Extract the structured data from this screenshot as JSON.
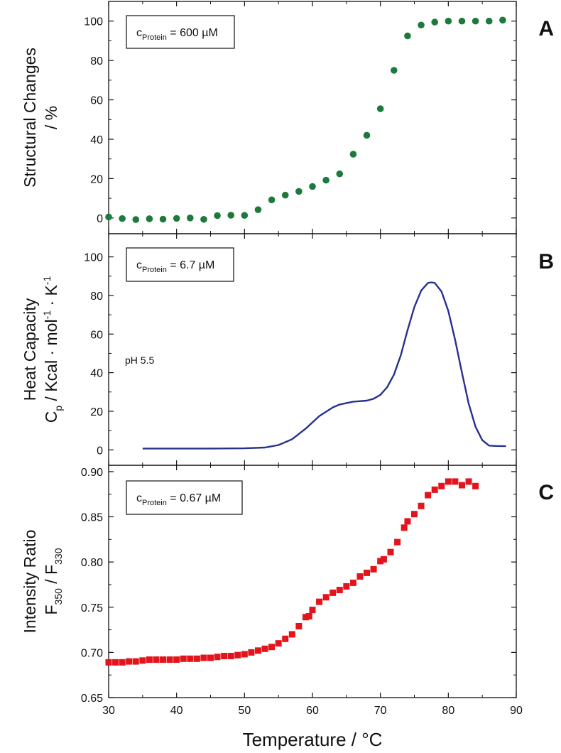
{
  "chart_data": [
    {
      "panel": "A",
      "type": "scatter",
      "ylabel_lines": [
        "Structural Changes",
        "/ %"
      ],
      "legend": {
        "prefix": "c",
        "sub": "Protein",
        "suffix": " = 600 µM"
      },
      "ylim": [
        -8,
        110
      ],
      "yticks": [
        0,
        20,
        40,
        60,
        80,
        100
      ],
      "marker": "circle",
      "color": "#1e7a3c",
      "series": [
        {
          "x": [
            30,
            32,
            34,
            36,
            38,
            40,
            42,
            44,
            46,
            48,
            50,
            52,
            54,
            56,
            58,
            60,
            62,
            64,
            66,
            68,
            70,
            72,
            74,
            76,
            78,
            80,
            82,
            84,
            86,
            88
          ],
          "y": [
            0.5,
            -0.3,
            -0.8,
            -0.4,
            -0.6,
            -0.2,
            0,
            -0.7,
            1.2,
            1.4,
            1.3,
            4.2,
            9.2,
            11.6,
            13.5,
            16.0,
            19.2,
            22.4,
            32.4,
            42.0,
            55.5,
            75.0,
            92.5,
            98.0,
            99.5,
            100.0,
            100.0,
            100.0,
            100.0,
            100.5
          ]
        }
      ]
    },
    {
      "panel": "B",
      "type": "line",
      "ylabel_lines": [
        "Heat Capacity",
        "C|p|  /  Kcal · mol|-1| · K|-1|"
      ],
      "legend": {
        "prefix": "c",
        "sub": "Protein",
        "suffix": " = 6.7 µM"
      },
      "annotation": "pH 5.5",
      "ylim": [
        -8,
        112
      ],
      "yticks": [
        0,
        20,
        40,
        60,
        80,
        100
      ],
      "color": "#27318e",
      "series": [
        {
          "x": [
            35,
            40,
            45,
            50,
            53,
            55,
            57,
            59,
            61,
            63,
            64,
            66,
            68,
            69,
            70,
            71,
            72,
            73,
            74,
            75,
            76,
            77,
            77.5,
            78,
            79,
            80,
            81,
            82,
            83,
            84,
            85,
            86,
            87,
            88.5
          ],
          "y": [
            0.7,
            0.7,
            0.7,
            0.8,
            1.2,
            2.5,
            5.5,
            11.0,
            17.5,
            22.0,
            23.5,
            25.0,
            25.5,
            26.5,
            28.5,
            32.5,
            39.0,
            49.0,
            62.0,
            74.0,
            82.5,
            86.5,
            86.8,
            86.5,
            82.0,
            72.0,
            57.0,
            40.0,
            24.0,
            12.0,
            5.0,
            2.2,
            2.0,
            1.9
          ]
        }
      ]
    },
    {
      "panel": "C",
      "type": "scatter",
      "ylabel_lines": [
        "Intensity Ratio",
        "F|350| / F|330|"
      ],
      "legend": {
        "prefix": "c",
        "sub": "Protein",
        "suffix": " = 0.67 µM"
      },
      "ylim": [
        0.65,
        0.907
      ],
      "yticks": [
        0.65,
        0.7,
        0.75,
        0.8,
        0.85,
        0.9
      ],
      "ytick_labels": [
        "0.65",
        "0.70",
        "0.75",
        "0.80",
        "0.85",
        "0.90"
      ],
      "marker": "square",
      "color": "#e3141b",
      "series": [
        {
          "x": [
            30,
            31,
            32,
            33,
            34,
            35,
            36,
            37,
            38,
            39,
            40,
            41,
            42,
            43,
            44,
            45,
            46,
            47,
            48,
            49,
            50,
            51,
            52,
            53,
            54,
            55,
            56,
            57,
            58,
            59,
            59.5,
            60,
            61,
            62,
            63,
            64,
            65,
            66,
            67,
            68,
            69,
            70,
            70.5,
            71.5,
            72.5,
            73.5,
            74,
            75,
            76,
            77,
            78,
            79,
            80,
            81,
            82,
            83,
            84
          ],
          "y": [
            0.689,
            0.689,
            0.689,
            0.69,
            0.69,
            0.691,
            0.692,
            0.692,
            0.692,
            0.692,
            0.692,
            0.693,
            0.693,
            0.693,
            0.694,
            0.694,
            0.695,
            0.696,
            0.696,
            0.697,
            0.698,
            0.7,
            0.702,
            0.704,
            0.706,
            0.71,
            0.715,
            0.72,
            0.729,
            0.739,
            0.74,
            0.747,
            0.756,
            0.761,
            0.766,
            0.769,
            0.773,
            0.777,
            0.784,
            0.788,
            0.792,
            0.801,
            0.803,
            0.811,
            0.822,
            0.838,
            0.845,
            0.853,
            0.862,
            0.874,
            0.88,
            0.884,
            0.889,
            0.889,
            0.885,
            0.889,
            0.884
          ]
        }
      ]
    }
  ],
  "x_axis": {
    "label": "Temperature  /  °C",
    "xlim": [
      30,
      90
    ],
    "ticks": [
      30,
      40,
      50,
      60,
      70,
      80,
      90
    ]
  }
}
